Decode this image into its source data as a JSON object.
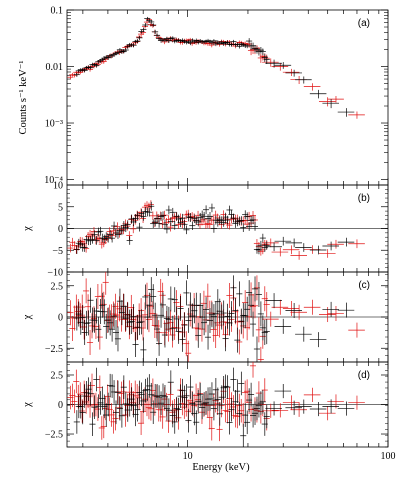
{
  "figure": {
    "xlabel": "Energy (keV)",
    "colors": {
      "black": "#000000",
      "red": "#e01010",
      "zero_line": "#444444"
    }
  },
  "chart_data": [
    {
      "type": "scatter",
      "panel": "(a)",
      "ylabel": "Counts s⁻¹ keV⁻¹",
      "yscale": "log",
      "xscale": "log",
      "xlim": [
        2.5,
        100
      ],
      "ylim": [
        8e-05,
        0.1
      ],
      "x_ticks": [
        "10",
        "100"
      ],
      "y_ticks": [
        "10⁻⁴",
        "10⁻³",
        "0.01",
        "0.1"
      ],
      "model": {
        "continuum_at_3keV": 0.0085,
        "peak_energy": 6.4,
        "peak_value": 0.062,
        "plateau_value": 0.028,
        "break_energy": 20,
        "high_slope": -2.3
      },
      "series": [
        {
          "color": "black",
          "energy_range": [
            2.8,
            80
          ],
          "points_sample": [
            [
              3,
              0.0062
            ],
            [
              5,
              0.021
            ],
            [
              6.4,
              0.058
            ],
            [
              10,
              0.027
            ],
            [
              15,
              0.021
            ],
            [
              20,
              0.012
            ],
            [
              30,
              0.0035
            ],
            [
              45,
              0.0009
            ],
            [
              62,
              0.00025
            ]
          ]
        },
        {
          "color": "red",
          "energy_range": [
            2.6,
            75
          ],
          "points_sample": [
            [
              2.7,
              0.008
            ],
            [
              5,
              0.022
            ],
            [
              6.4,
              0.06
            ],
            [
              10,
              0.028
            ],
            [
              15,
              0.022
            ],
            [
              20,
              0.013
            ],
            [
              30,
              0.0037
            ],
            [
              50,
              0.0006
            ],
            [
              70,
              0.00013
            ]
          ]
        }
      ]
    },
    {
      "type": "scatter",
      "panel": "(b)",
      "ylabel": "χ",
      "xscale": "log",
      "xlim": [
        2.5,
        100
      ],
      "ylim": [
        -10,
        10
      ],
      "y_ticks": [
        "10",
        "5",
        "0",
        "−5",
        "−10"
      ],
      "description_values": {
        "low_energy_chi": -4,
        "peak_chi": 4.5,
        "mid_chi": 2,
        "high_chi": -4
      },
      "series": [
        {
          "color": "black"
        },
        {
          "color": "red"
        }
      ]
    },
    {
      "type": "scatter",
      "panel": "(c)",
      "ylabel": "χ",
      "xscale": "log",
      "xlim": [
        2.5,
        100
      ],
      "ylim": [
        -3.6,
        3.6
      ],
      "y_ticks": [
        "2.5",
        "0",
        "−2.5"
      ],
      "series": [
        {
          "color": "black"
        },
        {
          "color": "red"
        }
      ]
    },
    {
      "type": "scatter",
      "panel": "(d)",
      "ylabel": "χ",
      "xscale": "log",
      "xlim": [
        2.5,
        100
      ],
      "ylim": [
        -3.6,
        3.6
      ],
      "y_ticks": [
        "2.5",
        "0",
        "−2.5"
      ],
      "series": [
        {
          "color": "black"
        },
        {
          "color": "red"
        }
      ]
    }
  ]
}
